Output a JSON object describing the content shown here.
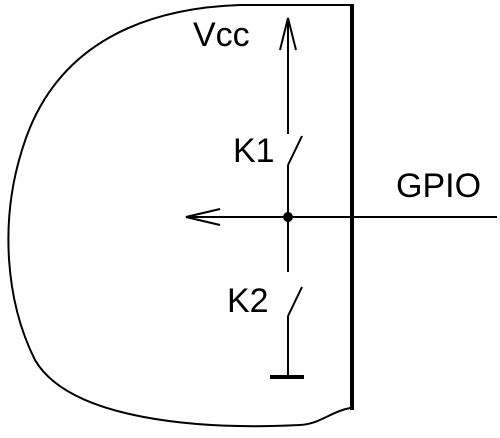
{
  "labels": {
    "vcc": "Vcc",
    "k1": "K1",
    "k2": "K2",
    "gpio": "GPIO"
  },
  "colors": {
    "ink": "#000000",
    "background": "#ffffff"
  }
}
